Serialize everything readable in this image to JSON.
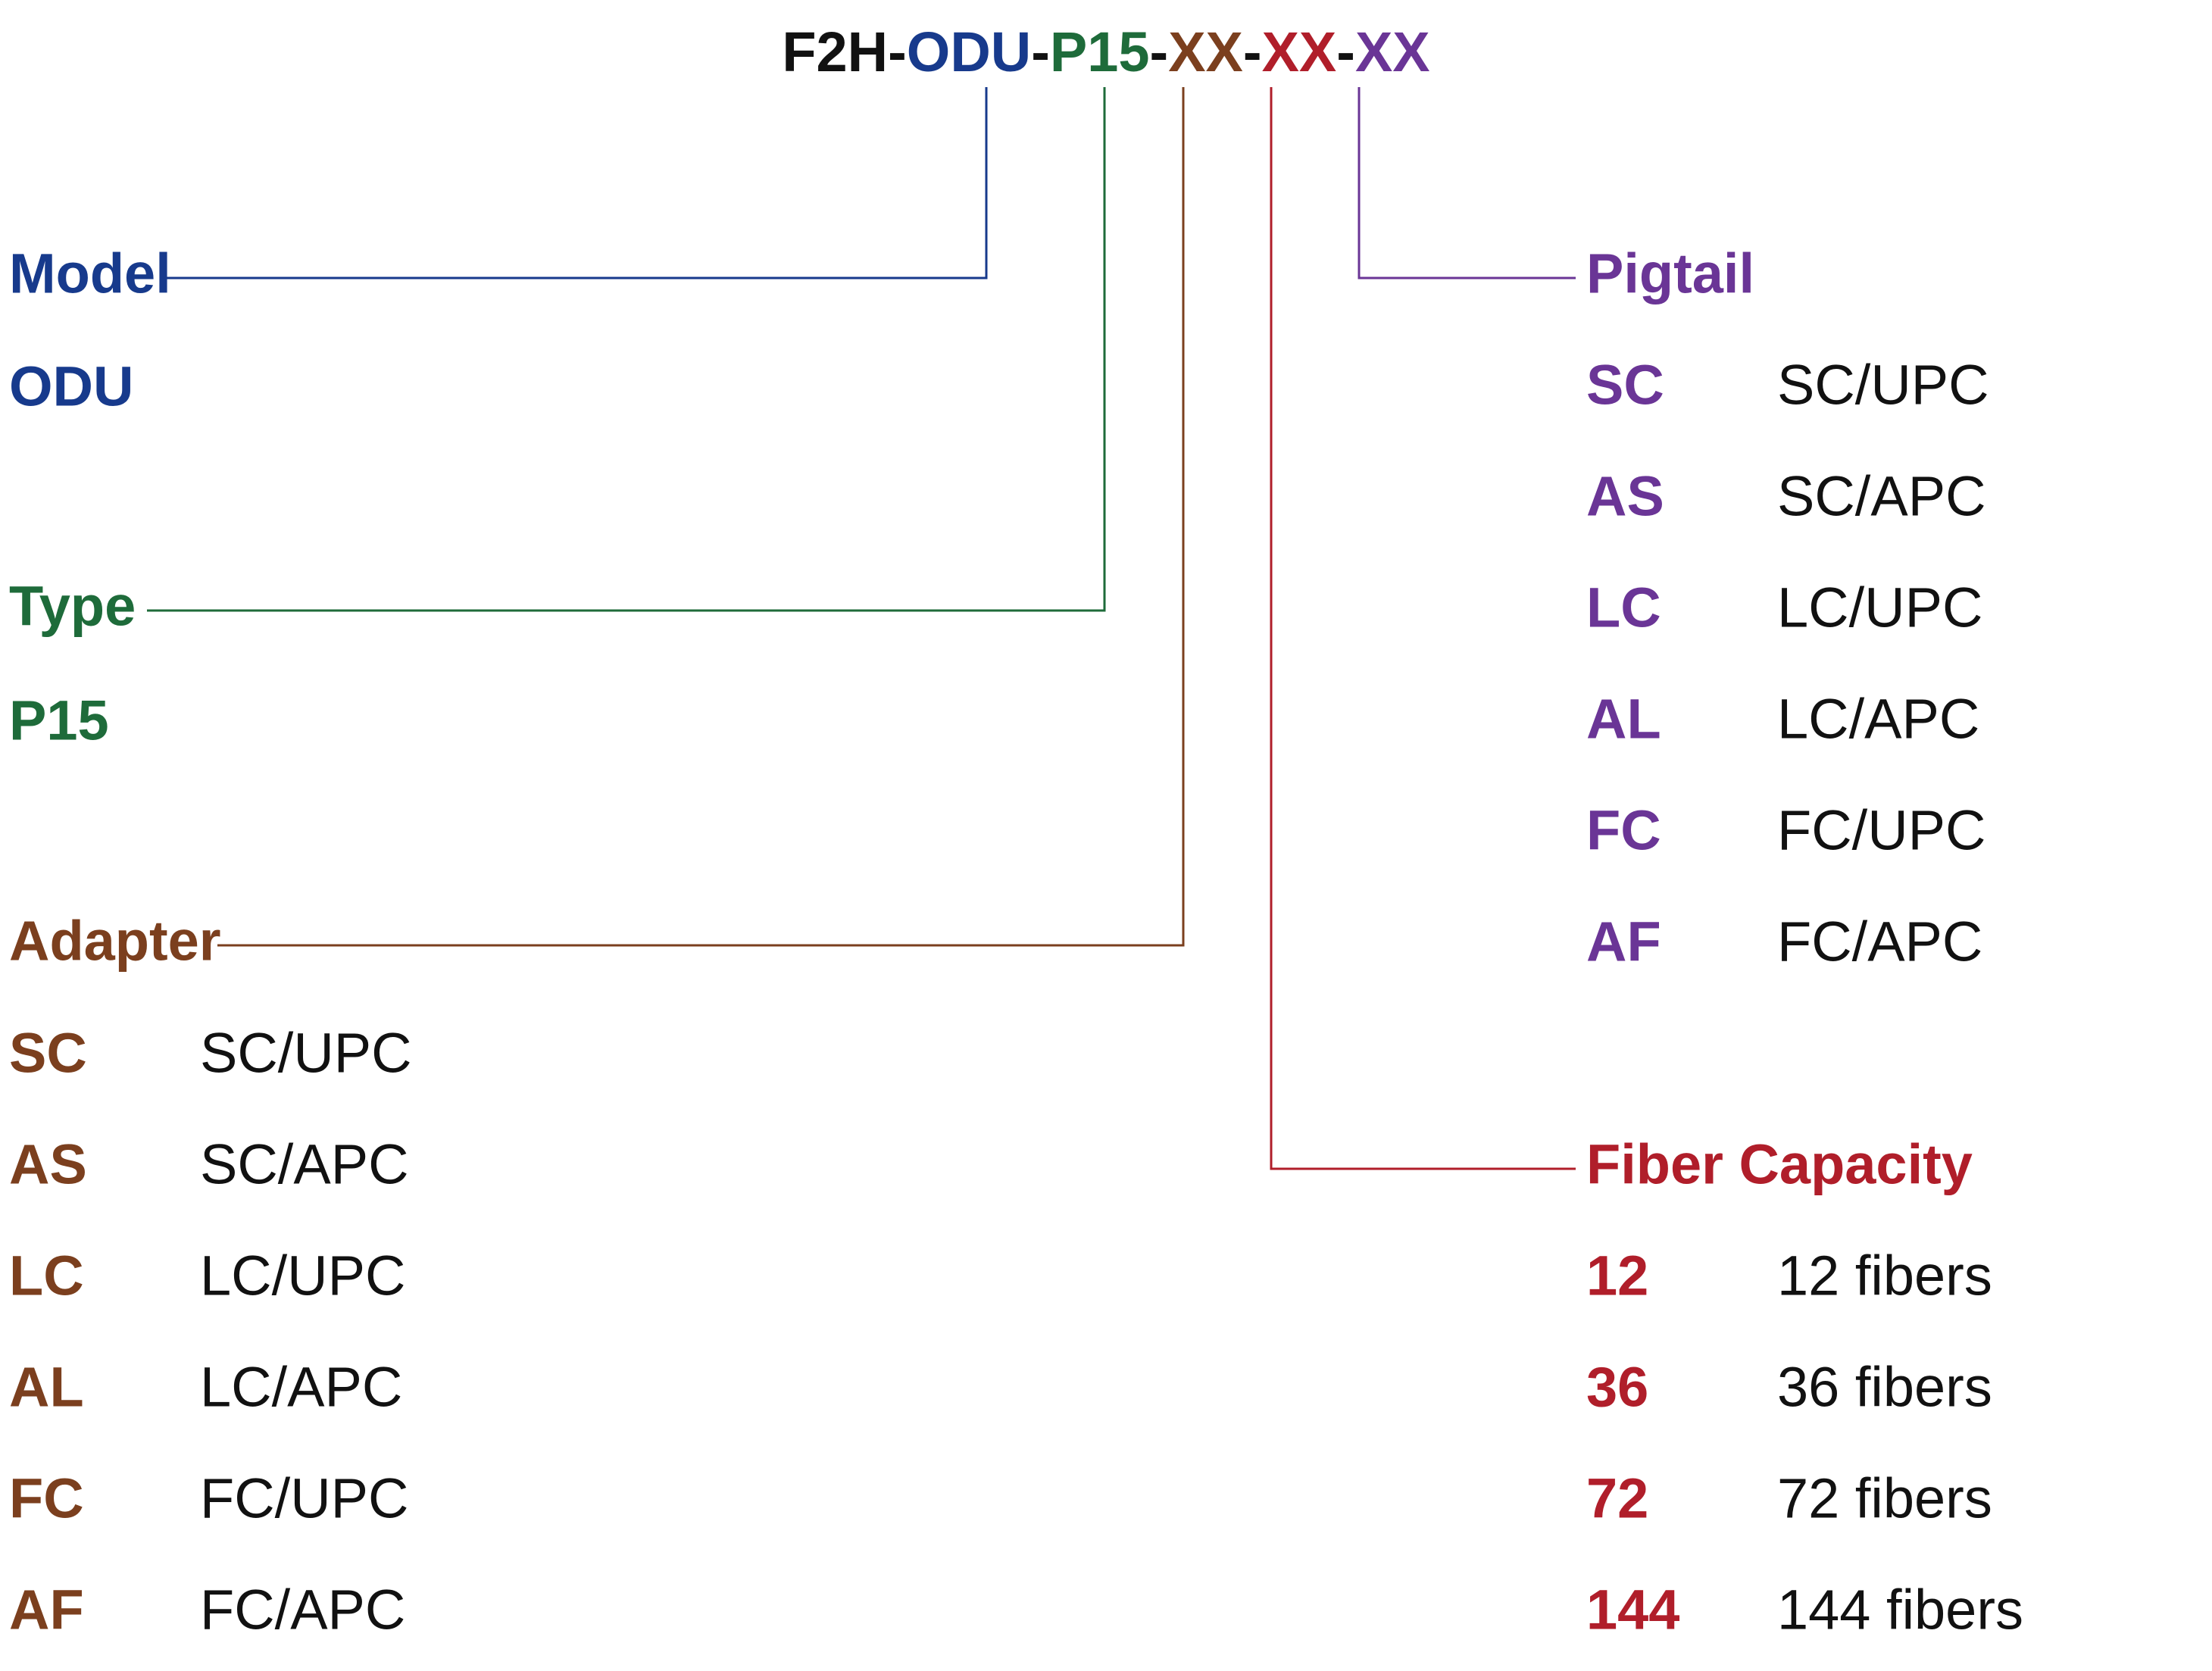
{
  "code_parts": [
    "F2H-",
    "ODU",
    "-",
    "P15",
    "-",
    "XX",
    "-",
    "XX",
    "-",
    "XX"
  ],
  "model": {
    "title": "Model",
    "rows": [
      [
        "ODU"
      ]
    ]
  },
  "type": {
    "title": "Type",
    "rows": [
      [
        "P15"
      ]
    ]
  },
  "adapter": {
    "title": "Adapter",
    "rows": [
      [
        "SC",
        "SC/UPC"
      ],
      [
        "AS",
        "SC/APC"
      ],
      [
        "LC",
        "LC/UPC"
      ],
      [
        "AL",
        "LC/APC"
      ],
      [
        "FC",
        "FC/UPC"
      ],
      [
        "AF",
        "FC/APC"
      ]
    ]
  },
  "pigtail": {
    "title": "Pigtail",
    "rows": [
      [
        "SC",
        "SC/UPC"
      ],
      [
        "AS",
        "SC/APC"
      ],
      [
        "LC",
        "LC/UPC"
      ],
      [
        "AL",
        "LC/APC"
      ],
      [
        "FC",
        "FC/UPC"
      ],
      [
        "AF",
        "FC/APC"
      ]
    ]
  },
  "fiber_capacity": {
    "title": "Fiber Capacity",
    "rows": [
      [
        "12",
        "12 fibers"
      ],
      [
        "36",
        "36 fibers"
      ],
      [
        "72",
        "72 fibers"
      ],
      [
        "144",
        "144 fibers"
      ]
    ]
  }
}
